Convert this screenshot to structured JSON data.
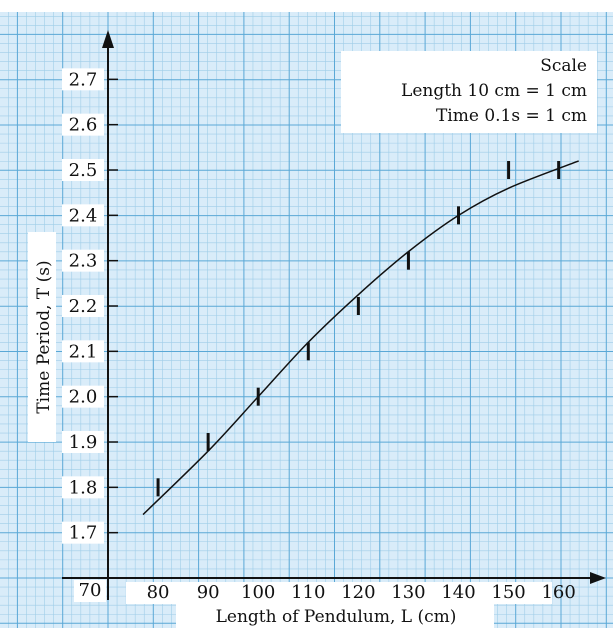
{
  "colors": {
    "background": "#ffffff",
    "paper": "#d9ecf9",
    "grid_minor": "#9fcde8",
    "grid_major": "#5aa8d6",
    "ink": "#111111"
  },
  "scale_box": {
    "heading": "Scale",
    "line_length": "Length 10 cm = 1 cm",
    "line_time": "Time 0.1s = 1 cm"
  },
  "chart_data": {
    "type": "scatter",
    "title": "",
    "xlabel": "Length of Pendulum, L (cm)",
    "ylabel": "Time Period, T (s)",
    "xlim": [
      70,
      170
    ],
    "ylim": [
      1.6,
      2.8
    ],
    "x_origin_label": "70",
    "grid": true,
    "x_tick_values": [
      80,
      90,
      100,
      110,
      120,
      130,
      140,
      150,
      160
    ],
    "x_tick_labels": [
      "80",
      "90",
      "100",
      "110",
      "120",
      "130",
      "140",
      "150",
      "160"
    ],
    "y_tick_values": [
      1.7,
      1.8,
      1.9,
      2.0,
      2.1,
      2.2,
      2.3,
      2.4,
      2.5,
      2.6,
      2.7
    ],
    "y_tick_labels": [
      "1.7",
      "1.8",
      "1.9",
      "2.0",
      "2.1",
      "2.2",
      "2.3",
      "2.4",
      "2.5",
      "2.6",
      "2.7"
    ],
    "series": [
      {
        "marker": "vertical-bar",
        "x": [
          80,
          90,
          100,
          110,
          120,
          130,
          140,
          150,
          160
        ],
        "y": [
          1.8,
          1.9,
          2.0,
          2.1,
          2.2,
          2.3,
          2.4,
          2.5,
          2.5
        ]
      }
    ],
    "fit_curve": {
      "x": [
        77,
        90,
        100,
        110,
        120,
        130,
        140,
        150,
        164
      ],
      "y": [
        1.74,
        1.88,
        2.0,
        2.12,
        2.225,
        2.32,
        2.4,
        2.46,
        2.52
      ]
    }
  }
}
